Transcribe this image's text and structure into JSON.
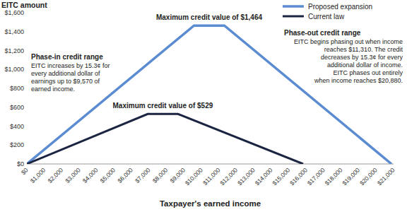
{
  "chart_data": {
    "type": "line",
    "y_label": "EITC amount",
    "x_label": "Taxpayer's earned income",
    "xlim": [
      0,
      21000
    ],
    "ylim": [
      0,
      1600
    ],
    "xticks": [
      {
        "value": 0,
        "label": "$0"
      },
      {
        "value": 1000,
        "label": "$1,000"
      },
      {
        "value": 2000,
        "label": "$2,000"
      },
      {
        "value": 3000,
        "label": "$3,000"
      },
      {
        "value": 4000,
        "label": "$4,000"
      },
      {
        "value": 5000,
        "label": "$5,000"
      },
      {
        "value": 6000,
        "label": "$6,000"
      },
      {
        "value": 7000,
        "label": "$7,000"
      },
      {
        "value": 8000,
        "label": "$8,000"
      },
      {
        "value": 9000,
        "label": "$9,000"
      },
      {
        "value": 10000,
        "label": "$10,000"
      },
      {
        "value": 11000,
        "label": "$11,000"
      },
      {
        "value": 12000,
        "label": "$12,000"
      },
      {
        "value": 13000,
        "label": "$13,000"
      },
      {
        "value": 14000,
        "label": "$14,000"
      },
      {
        "value": 15000,
        "label": "$15,000"
      },
      {
        "value": 16000,
        "label": "$16,000"
      },
      {
        "value": 17000,
        "label": "$17,000"
      },
      {
        "value": 18000,
        "label": "$18,000"
      },
      {
        "value": 19000,
        "label": "$19,000"
      },
      {
        "value": 20000,
        "label": "$20,000"
      },
      {
        "value": 21000,
        "label": "$21,000"
      }
    ],
    "yticks": [
      {
        "value": 0,
        "label": "$0"
      },
      {
        "value": 200,
        "label": "$200"
      },
      {
        "value": 400,
        "label": "$400"
      },
      {
        "value": 600,
        "label": "$600"
      },
      {
        "value": 800,
        "label": "$800"
      },
      {
        "value": 1000,
        "label": "$1,000"
      },
      {
        "value": 1200,
        "label": "$1,200"
      },
      {
        "value": 1400,
        "label": "$1,400"
      },
      {
        "value": 1600,
        "label": "$1,600"
      }
    ],
    "grid": false,
    "legend": "top-right",
    "series": [
      {
        "name": "Proposed expansion",
        "color": "#5b8bd0",
        "x": [
          0,
          9570,
          11310,
          20880
        ],
        "values": [
          0,
          1464,
          1464,
          0
        ]
      },
      {
        "name": "Current law",
        "color": "#1b2440",
        "x": [
          0,
          6920,
          8650,
          15820
        ],
        "values": [
          0,
          529,
          529,
          0
        ]
      }
    ],
    "annotations": {
      "max_proposed": "Maximum credit value of $1,464",
      "max_current": "Maximum credit value of $529",
      "phase_in": {
        "title": "Phase-in credit range",
        "lines": [
          "EITC increases by 15.3¢ for",
          "every additional dollar of",
          "earnings up to $9,570 of",
          "earned income."
        ]
      },
      "phase_out": {
        "title": "Phase-out credit range",
        "lines": [
          "EITC begins phasing out when income",
          "reaches $11,310. The credit",
          "decreases by 15.3¢ for every",
          "additional dollar of income.",
          "EITC phases out entirely",
          "when income reaches $20,880."
        ]
      }
    }
  }
}
